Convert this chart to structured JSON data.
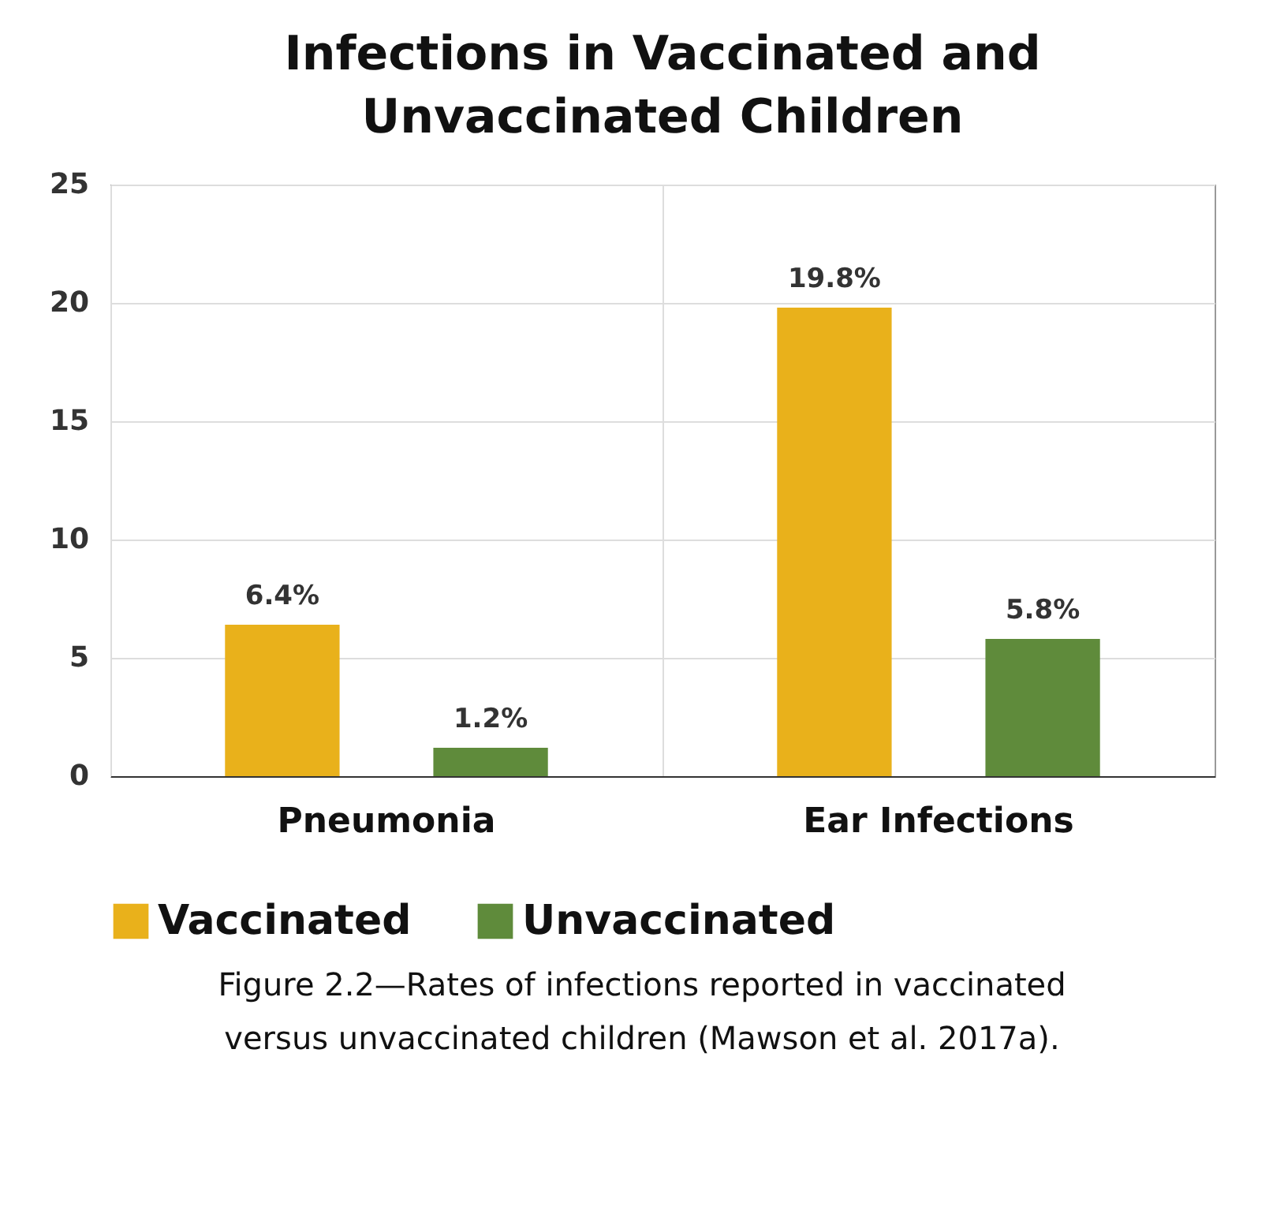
{
  "chart_data": {
    "type": "bar",
    "title": "Infections in Vaccinated and Unvaccinated Children",
    "categories": [
      "Pneumonia",
      "Ear Infections"
    ],
    "series": [
      {
        "name": "Vaccinated",
        "color": "#e9b11b",
        "values": [
          6.4,
          19.8
        ],
        "value_labels": [
          "6.4%",
          "19.8%"
        ]
      },
      {
        "name": "Unvaccinated",
        "color": "#5f8b3b",
        "values": [
          1.2,
          5.8
        ],
        "value_labels": [
          "1.2%",
          "5.8%"
        ]
      }
    ],
    "ylim": [
      0,
      25
    ],
    "yticks": [
      0,
      5,
      10,
      15,
      20,
      25
    ],
    "grid": "y",
    "legend": "bottom",
    "annotations": [
      "Figure 2.2—Rates of infections reported in vaccinated versus unvaccinated children (Mawson et al. 2017a)."
    ]
  }
}
